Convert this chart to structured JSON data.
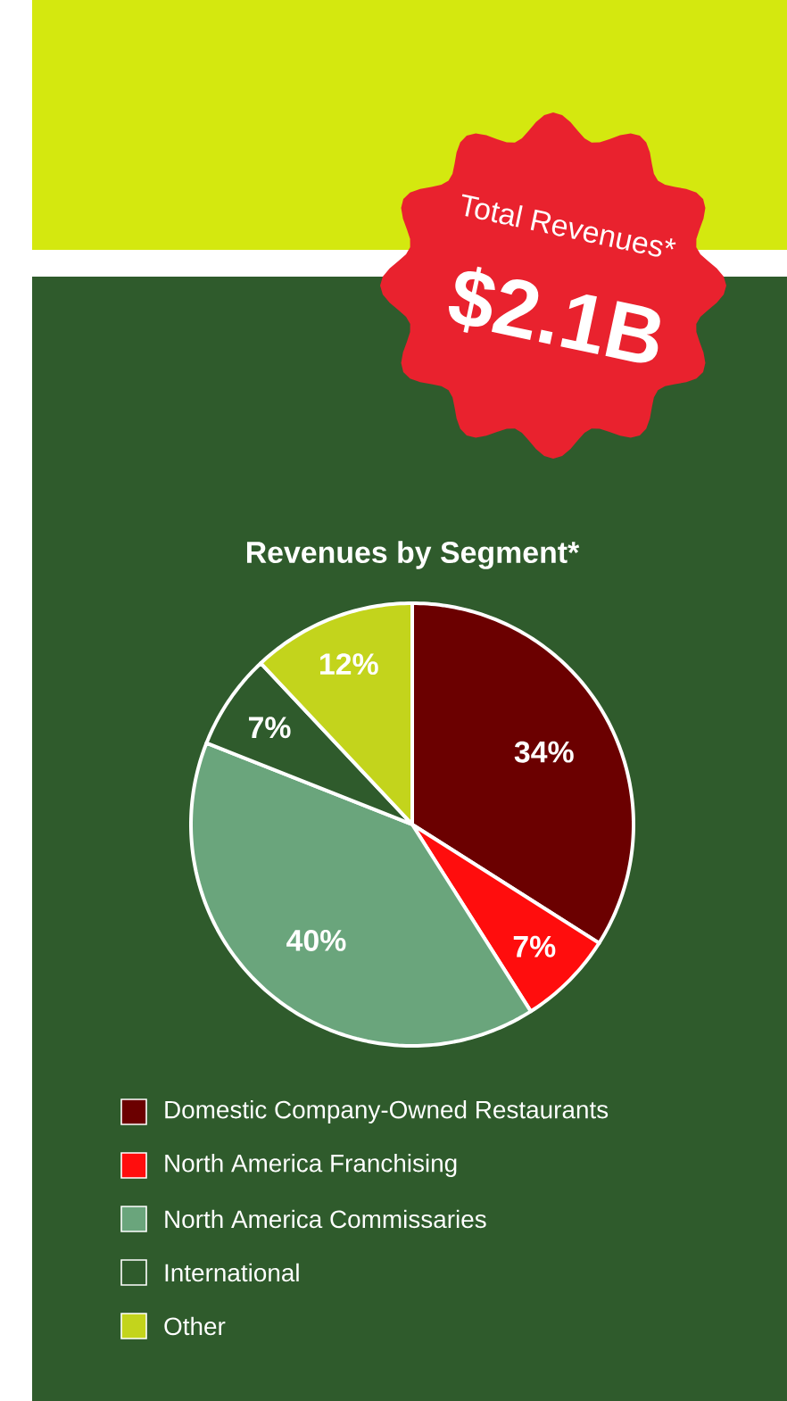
{
  "chart_data": {
    "type": "pie",
    "title": "Revenues by Segment*",
    "annotations": [
      "Total Revenues*",
      "$2.1B"
    ],
    "categories": [
      "Domestic Company-Owned Restaurants",
      "North America Franchising",
      "North America Commissaries",
      "International",
      "Other"
    ],
    "values": [
      34,
      7,
      40,
      7,
      12
    ],
    "value_labels": [
      "34%",
      "7%",
      "40%",
      "7%",
      "12%"
    ],
    "colors": [
      "#6b0000",
      "#ff0d0d",
      "#6aa57c",
      "#2f5b2c",
      "#c3d41c"
    ],
    "legend": "bottom"
  }
}
